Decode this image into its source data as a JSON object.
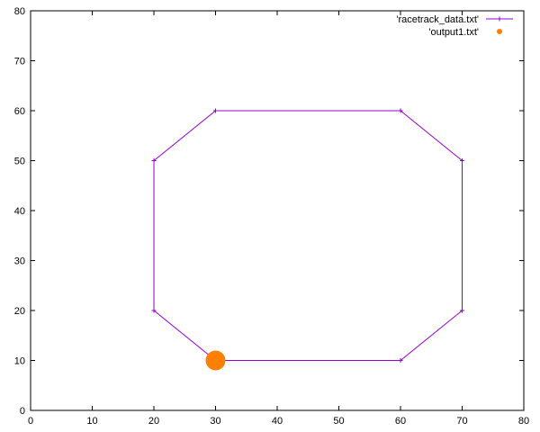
{
  "chart_data": {
    "type": "line",
    "title": "",
    "xlabel": "",
    "ylabel": "",
    "xlim": [
      0,
      80
    ],
    "ylim": [
      0,
      80
    ],
    "x_ticks": [
      0,
      10,
      20,
      30,
      40,
      50,
      60,
      70,
      80
    ],
    "y_ticks": [
      0,
      10,
      20,
      30,
      40,
      50,
      60,
      70,
      80
    ],
    "grid": false,
    "legend_position": "top-right",
    "series": [
      {
        "name": "'racetrack_data.txt'",
        "style": "linespoints",
        "color": "#9400d3",
        "points": [
          {
            "x": 30,
            "y": 10
          },
          {
            "x": 60,
            "y": 10
          },
          {
            "x": 70,
            "y": 20
          },
          {
            "x": 70,
            "y": 50
          },
          {
            "x": 60,
            "y": 60
          },
          {
            "x": 30,
            "y": 60
          },
          {
            "x": 20,
            "y": 50
          },
          {
            "x": 20,
            "y": 20
          },
          {
            "x": 30,
            "y": 10
          }
        ]
      },
      {
        "name": "'output1.txt'",
        "style": "points",
        "color": "#ff7f00",
        "points": [
          {
            "x": 30,
            "y": 10
          }
        ]
      }
    ]
  }
}
